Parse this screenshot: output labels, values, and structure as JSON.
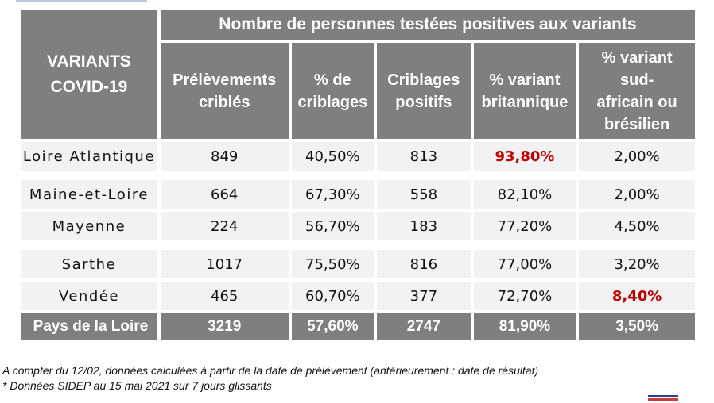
{
  "table": {
    "title": "Nombre de personnes testées positives aux variants",
    "corner_label_line1": "VARIANTS",
    "corner_label_line2": "COVID-19",
    "columns": [
      {
        "line1": "Prélèvements",
        "line2": "criblés",
        "line3": "",
        "line4": ""
      },
      {
        "line1": "% de",
        "line2": "criblages",
        "line3": "",
        "line4": ""
      },
      {
        "line1": "Criblages",
        "line2": "positifs",
        "line3": "",
        "line4": ""
      },
      {
        "line1": "% variant",
        "line2": "britannique",
        "line3": "",
        "line4": ""
      },
      {
        "line1": "% variant",
        "line2": "sud-",
        "line3": "africain ou",
        "line4": "brésilien"
      }
    ],
    "rows": [
      {
        "dept": "Loire Atlantique",
        "preleve": "849",
        "pct_criblage": "40,50%",
        "positifs": "813",
        "brit": "93,80%",
        "sud": "2,00%"
      },
      {
        "dept": "Maine-et-Loire",
        "preleve": "664",
        "pct_criblage": "67,30%",
        "positifs": "558",
        "brit": "82,10%",
        "sud": "2,00%"
      },
      {
        "dept": "Mayenne",
        "preleve": "224",
        "pct_criblage": "56,70%",
        "positifs": "183",
        "brit": "77,20%",
        "sud": "4,50%"
      },
      {
        "dept": "Sarthe",
        "preleve": "1017",
        "pct_criblage": "75,50%",
        "positifs": "816",
        "brit": "77,00%",
        "sud": "3,20%"
      },
      {
        "dept": "Vendée",
        "preleve": "465",
        "pct_criblage": "60,70%",
        "positifs": "377",
        "brit": "72,70%",
        "sud": "8,40%"
      }
    ],
    "total": {
      "dept": "Pays de la Loire",
      "preleve": "3219",
      "pct_criblage": "57,60%",
      "positifs": "2747",
      "brit": "81,90%",
      "sud": "3,50%"
    }
  },
  "notes": {
    "line1": "A compter du 12/02, données calculées à partir de la date de prélèvement (antérieurement : date de résultat)",
    "line2": "* Données SIDEP au 15 mai 2021 sur 7 jours glissants"
  },
  "colors": {
    "header_bg": "#7f7f7f",
    "row_bg": "#f2f2f2",
    "highlight_red": "#c00000"
  }
}
